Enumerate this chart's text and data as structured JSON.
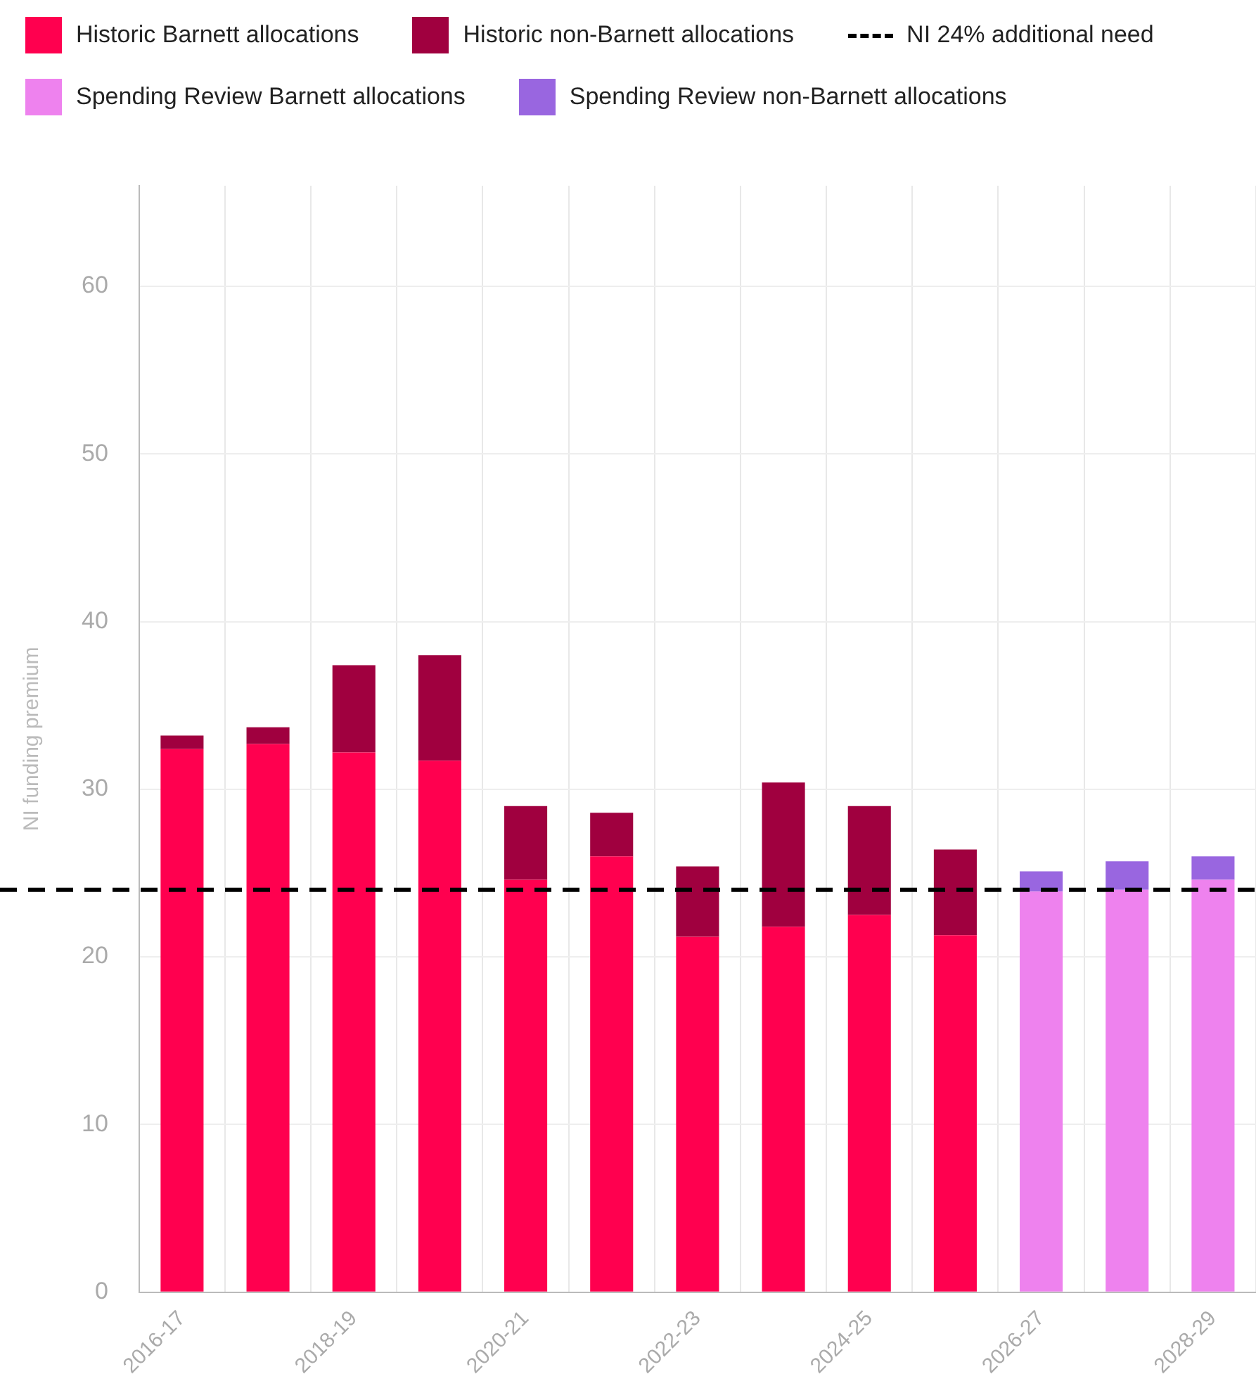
{
  "chart_data": {
    "type": "bar",
    "stacked": true,
    "ylabel": "NI funding premium",
    "categories": [
      "2016-17",
      null,
      "2018-19",
      null,
      "2020-21",
      null,
      "2022-23",
      null,
      "2024-25",
      null,
      "2026-27",
      null,
      "2028-29"
    ],
    "series": [
      {
        "name": "Historic Barnett allocations",
        "color": "#ff004f",
        "values": [
          32.4,
          32.7,
          32.2,
          31.7,
          24.6,
          26.0,
          21.2,
          21.8,
          22.5,
          21.3,
          null,
          null,
          null
        ]
      },
      {
        "name": "Historic non-Barnett allocations",
        "color": "#a0003f",
        "values": [
          0.8,
          1.0,
          5.2,
          6.3,
          4.4,
          2.6,
          4.2,
          8.6,
          6.5,
          5.1,
          null,
          null,
          null
        ]
      },
      {
        "name": "Spending Review Barnett allocations",
        "color": "#ee82ee",
        "values": [
          null,
          null,
          null,
          null,
          null,
          null,
          null,
          null,
          null,
          null,
          23.9,
          24.0,
          24.6
        ]
      },
      {
        "name": "Spending Review non-Barnett allocations",
        "color": "#9966e0",
        "values": [
          null,
          null,
          null,
          null,
          null,
          null,
          null,
          null,
          null,
          null,
          1.2,
          1.7,
          1.4
        ]
      }
    ],
    "ylim": [
      0,
      66
    ],
    "yticks": [
      0,
      10,
      20,
      30,
      40,
      50,
      60
    ],
    "grid": true,
    "legend": "top left",
    "ref_lines": [
      {
        "axis": "y",
        "value": 24,
        "label": "NI 24% additional need",
        "color": "#000000",
        "line_style": "dashed"
      }
    ]
  }
}
